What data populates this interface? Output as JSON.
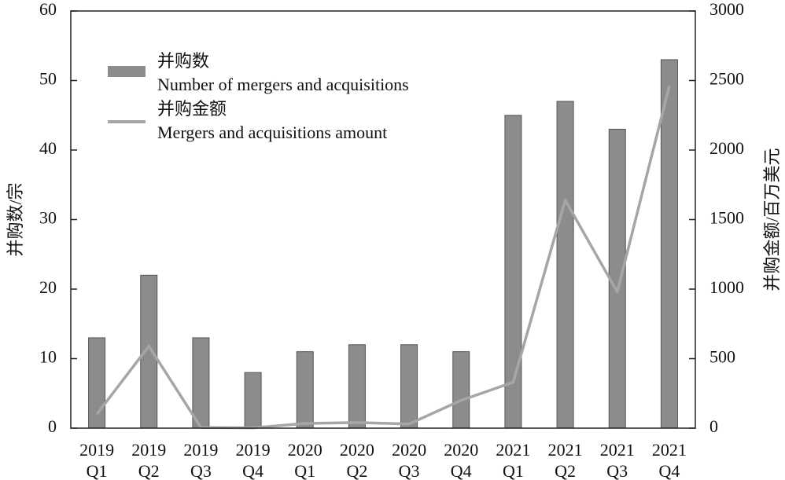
{
  "chart_data": {
    "type": "bar_line",
    "categories": [
      [
        "2019",
        "Q1"
      ],
      [
        "2019",
        "Q2"
      ],
      [
        "2019",
        "Q3"
      ],
      [
        "2019",
        "Q4"
      ],
      [
        "2020",
        "Q1"
      ],
      [
        "2020",
        "Q2"
      ],
      [
        "2020",
        "Q3"
      ],
      [
        "2020",
        "Q4"
      ],
      [
        "2021",
        "Q1"
      ],
      [
        "2021",
        "Q2"
      ],
      [
        "2021",
        "Q3"
      ],
      [
        "2021",
        "Q4"
      ]
    ],
    "ylabel": "并购数/宗",
    "y2label": "并购金额/百万美元",
    "ylim": [
      0,
      60
    ],
    "yticks": [
      0,
      10,
      20,
      30,
      40,
      50,
      60
    ],
    "y2lim": [
      0,
      3000
    ],
    "y2ticks": [
      0,
      500,
      1000,
      1500,
      2000,
      2500,
      3000
    ],
    "legend": "upper left",
    "series": [
      {
        "name": "并购数",
        "name_en": "Number of mergers and acquisitions",
        "kind": "bar",
        "color": "#8c8c8c",
        "values": [
          13,
          22,
          13,
          8,
          11,
          12,
          12,
          11,
          45,
          47,
          43,
          53
        ]
      },
      {
        "name": "并购金额",
        "name_en": "Mergers and acquisitions amount",
        "kind": "line",
        "axis": "y2",
        "color": "#a6a6a6",
        "values": [
          100,
          590,
          5,
          2,
          34,
          40,
          30,
          200,
          330,
          1640,
          980,
          2460
        ]
      }
    ]
  }
}
